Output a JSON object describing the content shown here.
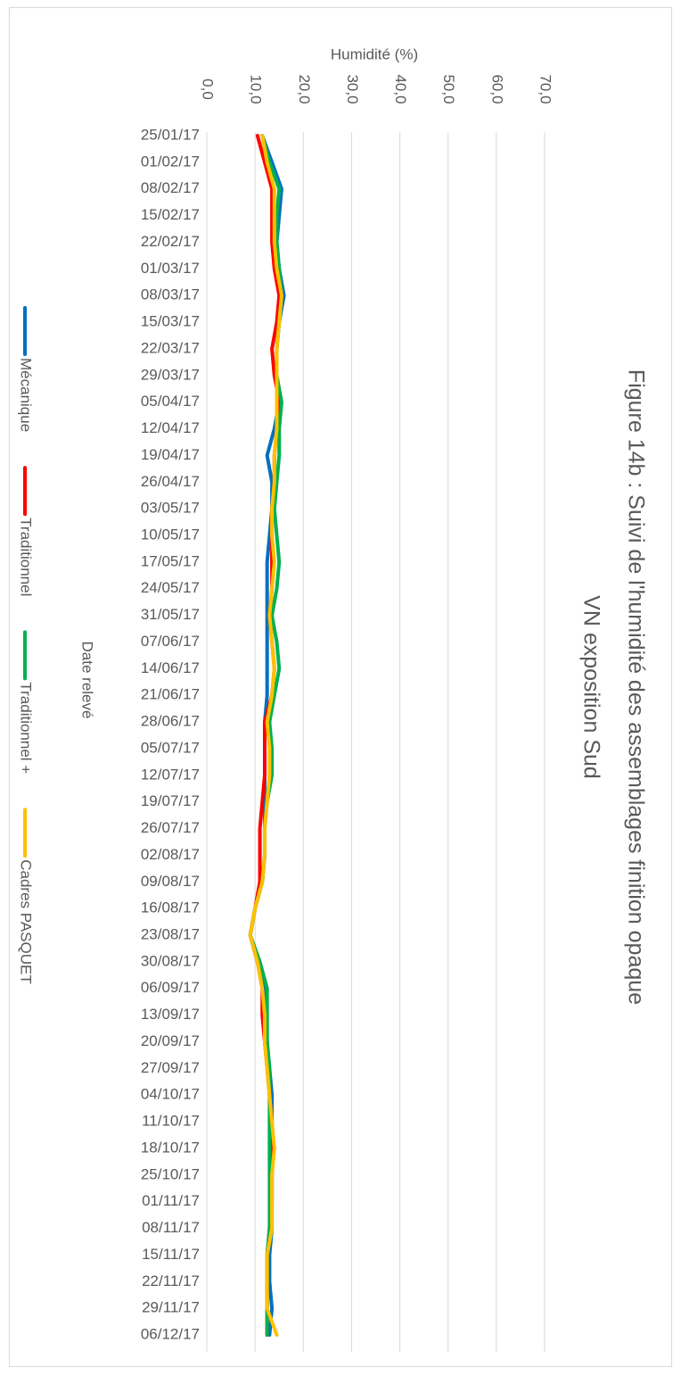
{
  "chart_data": {
    "type": "line",
    "title": [
      "Figure 14b : Suivi de l'humidité des assemblages finition opaque",
      "VN exposition Sud"
    ],
    "x_label": "Date relevé",
    "y_label": "Humidité (%)",
    "categories": [
      "25/01/17",
      "01/02/17",
      "08/02/17",
      "15/02/17",
      "22/02/17",
      "01/03/17",
      "08/03/17",
      "15/03/17",
      "22/03/17",
      "29/03/17",
      "05/04/17",
      "12/04/17",
      "19/04/17",
      "26/04/17",
      "03/05/17",
      "10/05/17",
      "17/05/17",
      "24/05/17",
      "31/05/17",
      "07/06/17",
      "14/06/17",
      "21/06/17",
      "28/06/17",
      "05/07/17",
      "12/07/17",
      "19/07/17",
      "26/07/17",
      "02/08/17",
      "09/08/17",
      "16/08/17",
      "23/08/17",
      "30/08/17",
      "06/09/17",
      "13/09/17",
      "20/09/17",
      "27/09/17",
      "04/10/17",
      "11/10/17",
      "18/10/17",
      "25/10/17",
      "01/11/17",
      "08/11/17",
      "15/11/17",
      "22/11/17",
      "29/11/17",
      "06/12/17"
    ],
    "series": [
      {
        "name": "Mécanique",
        "color": "#0070c0",
        "values": [
          11.5,
          13.5,
          15.5,
          15,
          14.5,
          15,
          16,
          15,
          14.5,
          14.5,
          15,
          14,
          12.5,
          13.5,
          13.5,
          13,
          12.5,
          12.5,
          12.5,
          12.5,
          12.5,
          12.5,
          12,
          12,
          12,
          12,
          12,
          12,
          11.5,
          10,
          9,
          10.5,
          12,
          12,
          12.5,
          13,
          13.5,
          13.5,
          13.5,
          13.5,
          13.5,
          13.5,
          13,
          13,
          13.5,
          13
        ]
      },
      {
        "name": "Traditionnel",
        "color": "#ff0000",
        "values": [
          10.5,
          12,
          13.5,
          13.5,
          13.5,
          14,
          15,
          14.5,
          13.5,
          14,
          15,
          14.5,
          14,
          14,
          13.5,
          13.5,
          13.5,
          13.5,
          13,
          13.5,
          14,
          13.5,
          12,
          12,
          12,
          11.5,
          11,
          11,
          11,
          10,
          9,
          10.5,
          11.5,
          11.5,
          12,
          12.5,
          13,
          13.5,
          13.5,
          13.5,
          13.5,
          13,
          12.5,
          12.5,
          12.5,
          12.5
        ]
      },
      {
        "name": "Traditionnel +",
        "color": "#00b050",
        "values": [
          11.5,
          13,
          15,
          14.5,
          14.5,
          15,
          15.5,
          15,
          14.5,
          14.5,
          15.5,
          15,
          15,
          14.5,
          14,
          14.5,
          15,
          14.5,
          13.5,
          14.5,
          15,
          14,
          13,
          13.5,
          13.5,
          12.5,
          12,
          12,
          11.5,
          10,
          9,
          11,
          12.5,
          12.5,
          12.5,
          13,
          13,
          13,
          13,
          13,
          13,
          13,
          12.5,
          12.5,
          12.5,
          12.5
        ]
      },
      {
        "name": "Cadres PASQUET",
        "color": "#ffc000",
        "values": [
          11.5,
          12.5,
          14,
          14,
          14,
          14.5,
          15.5,
          15,
          14.5,
          14.5,
          14.5,
          14.5,
          14,
          14,
          13.5,
          13.5,
          14,
          13.5,
          13,
          13.5,
          14,
          13.5,
          12.5,
          13,
          13,
          12.5,
          12,
          12,
          11.5,
          10,
          9,
          10.5,
          11.5,
          12,
          12,
          12.5,
          13,
          13.5,
          14,
          13.5,
          13.5,
          13.5,
          12.5,
          12.5,
          12.5,
          14.5
        ]
      }
    ],
    "ylim": [
      0,
      70
    ],
    "yticks": [
      {
        "value": 0,
        "label": "0,0"
      },
      {
        "value": 10,
        "label": "10,0"
      },
      {
        "value": 20,
        "label": "20,0"
      },
      {
        "value": 30,
        "label": "30,0"
      },
      {
        "value": 40,
        "label": "40,0"
      },
      {
        "value": 50,
        "label": "50,0"
      },
      {
        "value": 60,
        "label": "60,0"
      },
      {
        "value": 70,
        "label": "70,0"
      }
    ],
    "grid": true
  }
}
